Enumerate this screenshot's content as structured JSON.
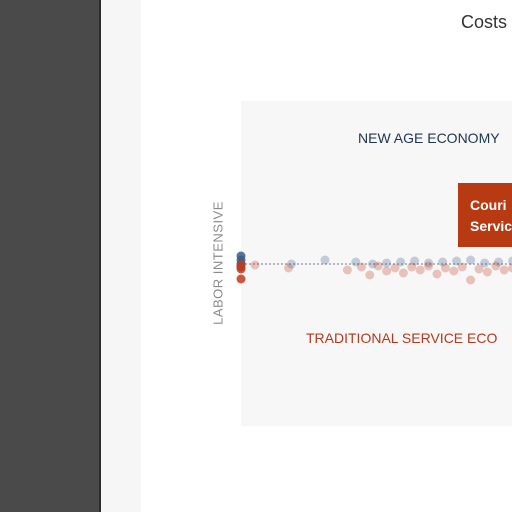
{
  "chart_data": {
    "type": "scatter",
    "title": "Costs",
    "ylabel": "LABOR INTENSIVE",
    "annotations": {
      "top_region": "NEW AGE ECONOMY",
      "bottom_region": "TRADITIONAL SERVICE ECO",
      "callout_line1": "Couri",
      "callout_line2": "Servic"
    },
    "series": [
      {
        "name": "",
        "color": "#3d5a87",
        "points": [
          {
            "x": 0,
            "y": 0
          },
          {
            "x": 0,
            "y": 0.4
          },
          {
            "x": 0,
            "y": 0.8
          },
          {
            "x": 0,
            "y": -0.3
          },
          {
            "x": 18,
            "y": 0
          },
          {
            "x": 30,
            "y": 0.4
          },
          {
            "x": 41,
            "y": 0.2
          },
          {
            "x": 47,
            "y": 0
          },
          {
            "x": 52,
            "y": 0.1
          },
          {
            "x": 57,
            "y": 0.2
          },
          {
            "x": 62,
            "y": 0.3
          },
          {
            "x": 67,
            "y": 0.1
          },
          {
            "x": 72,
            "y": 0.2
          },
          {
            "x": 77,
            "y": 0.3
          },
          {
            "x": 82,
            "y": 0.4
          },
          {
            "x": 87,
            "y": 0.1
          },
          {
            "x": 92,
            "y": 0.2
          },
          {
            "x": 97,
            "y": 0.3
          }
        ]
      },
      {
        "name": "",
        "color": "#c23b1b",
        "points": [
          {
            "x": 0,
            "y": -0.1
          },
          {
            "x": 0,
            "y": -0.5
          },
          {
            "x": 0,
            "y": -1.5
          },
          {
            "x": 5,
            "y": -0.1
          },
          {
            "x": 17,
            "y": -0.4
          },
          {
            "x": 38,
            "y": -0.6
          },
          {
            "x": 43,
            "y": -0.3
          },
          {
            "x": 46,
            "y": -1.1
          },
          {
            "x": 49,
            "y": -0.2
          },
          {
            "x": 52,
            "y": -0.7
          },
          {
            "x": 55,
            "y": -0.4
          },
          {
            "x": 58,
            "y": -0.9
          },
          {
            "x": 61,
            "y": -0.3
          },
          {
            "x": 64,
            "y": -0.6
          },
          {
            "x": 67,
            "y": -0.2
          },
          {
            "x": 70,
            "y": -1.0
          },
          {
            "x": 73,
            "y": -0.4
          },
          {
            "x": 76,
            "y": -0.7
          },
          {
            "x": 79,
            "y": -0.3
          },
          {
            "x": 82,
            "y": -1.6
          },
          {
            "x": 85,
            "y": -0.5
          },
          {
            "x": 88,
            "y": -0.8
          },
          {
            "x": 91,
            "y": -0.2
          },
          {
            "x": 94,
            "y": -0.6
          },
          {
            "x": 97,
            "y": -0.4
          }
        ]
      }
    ],
    "grid": false
  }
}
